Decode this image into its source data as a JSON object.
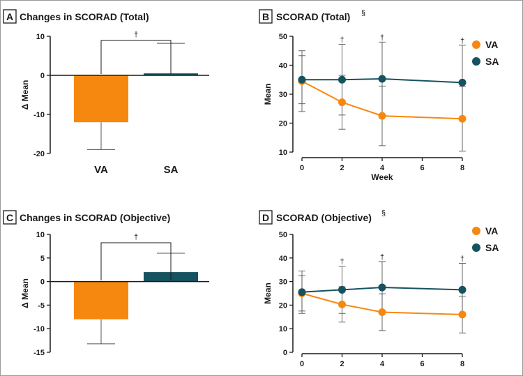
{
  "colors": {
    "VA": "#f7880f",
    "SA": "#16525f",
    "axis": "#1a1a1a",
    "errorbar": "#555555"
  },
  "chart_data": [
    {
      "panel": "A",
      "title": "Changes in SCORAD (Total)",
      "type": "bar",
      "ylabel": "Δ Mean",
      "categories": [
        "VA",
        "SA"
      ],
      "values": [
        -12,
        0.5
      ],
      "err_low": [
        -19,
        0.5
      ],
      "err_high": [
        -12,
        8.2
      ],
      "ylim": [
        -20,
        10
      ],
      "yticks": [
        "10",
        "0",
        "-10",
        "-20"
      ],
      "significance": "†"
    },
    {
      "panel": "B",
      "title": "SCORAD (Total)",
      "title_mark": "§",
      "type": "line",
      "xlabel": "Week",
      "ylabel": "Mean",
      "x": [
        0,
        2,
        4,
        8
      ],
      "xticks": [
        "0",
        "2",
        "4",
        "6",
        "8"
      ],
      "yticks": [
        "50",
        "40",
        "30",
        "20",
        "10"
      ],
      "ylim": [
        10,
        50
      ],
      "legend_position": "top-right",
      "series": [
        {
          "name": "VA",
          "values": [
            34.5,
            27.2,
            22.5,
            21.5
          ],
          "err": [
            10.5,
            9.3,
            10.3,
            11.2
          ]
        },
        {
          "name": "SA",
          "values": [
            35,
            35,
            35.3,
            34
          ],
          "err": [
            8.3,
            12.2,
            12.7,
            12.9
          ]
        }
      ],
      "significance_weeks": [
        2,
        4,
        8
      ],
      "significance": "†"
    },
    {
      "panel": "C",
      "title": "Changes in SCORAD (Objective)",
      "type": "bar",
      "ylabel": "Δ Mean",
      "categories": [
        "VA",
        "SA"
      ],
      "values": [
        -8,
        2
      ],
      "err_low": [
        -13.2,
        2
      ],
      "err_high": [
        -8,
        6
      ],
      "ylim": [
        -15,
        10
      ],
      "yticks": [
        "10",
        "5",
        "0",
        "-5",
        "-10",
        "-15"
      ],
      "significance": "†"
    },
    {
      "panel": "D",
      "title": "SCORAD (Objective)",
      "title_mark": "§",
      "type": "line",
      "xlabel": "",
      "ylabel": "Mean",
      "x": [
        0,
        2,
        4,
        8
      ],
      "xticks": [
        "0",
        "2",
        "4",
        "6",
        "8"
      ],
      "yticks": [
        "50",
        "40",
        "30",
        "20",
        "10",
        "0"
      ],
      "ylim": [
        0,
        50
      ],
      "legend_position": "top-right",
      "series": [
        {
          "name": "VA",
          "values": [
            25,
            20.3,
            17,
            16
          ],
          "err": [
            7.5,
            7.5,
            7.8,
            7.8
          ]
        },
        {
          "name": "SA",
          "values": [
            25.5,
            26.5,
            27.5,
            26.5
          ],
          "err": [
            9,
            10,
            11,
            11.2
          ]
        }
      ],
      "significance_weeks": [
        2,
        4,
        8
      ],
      "significance": "†"
    }
  ]
}
